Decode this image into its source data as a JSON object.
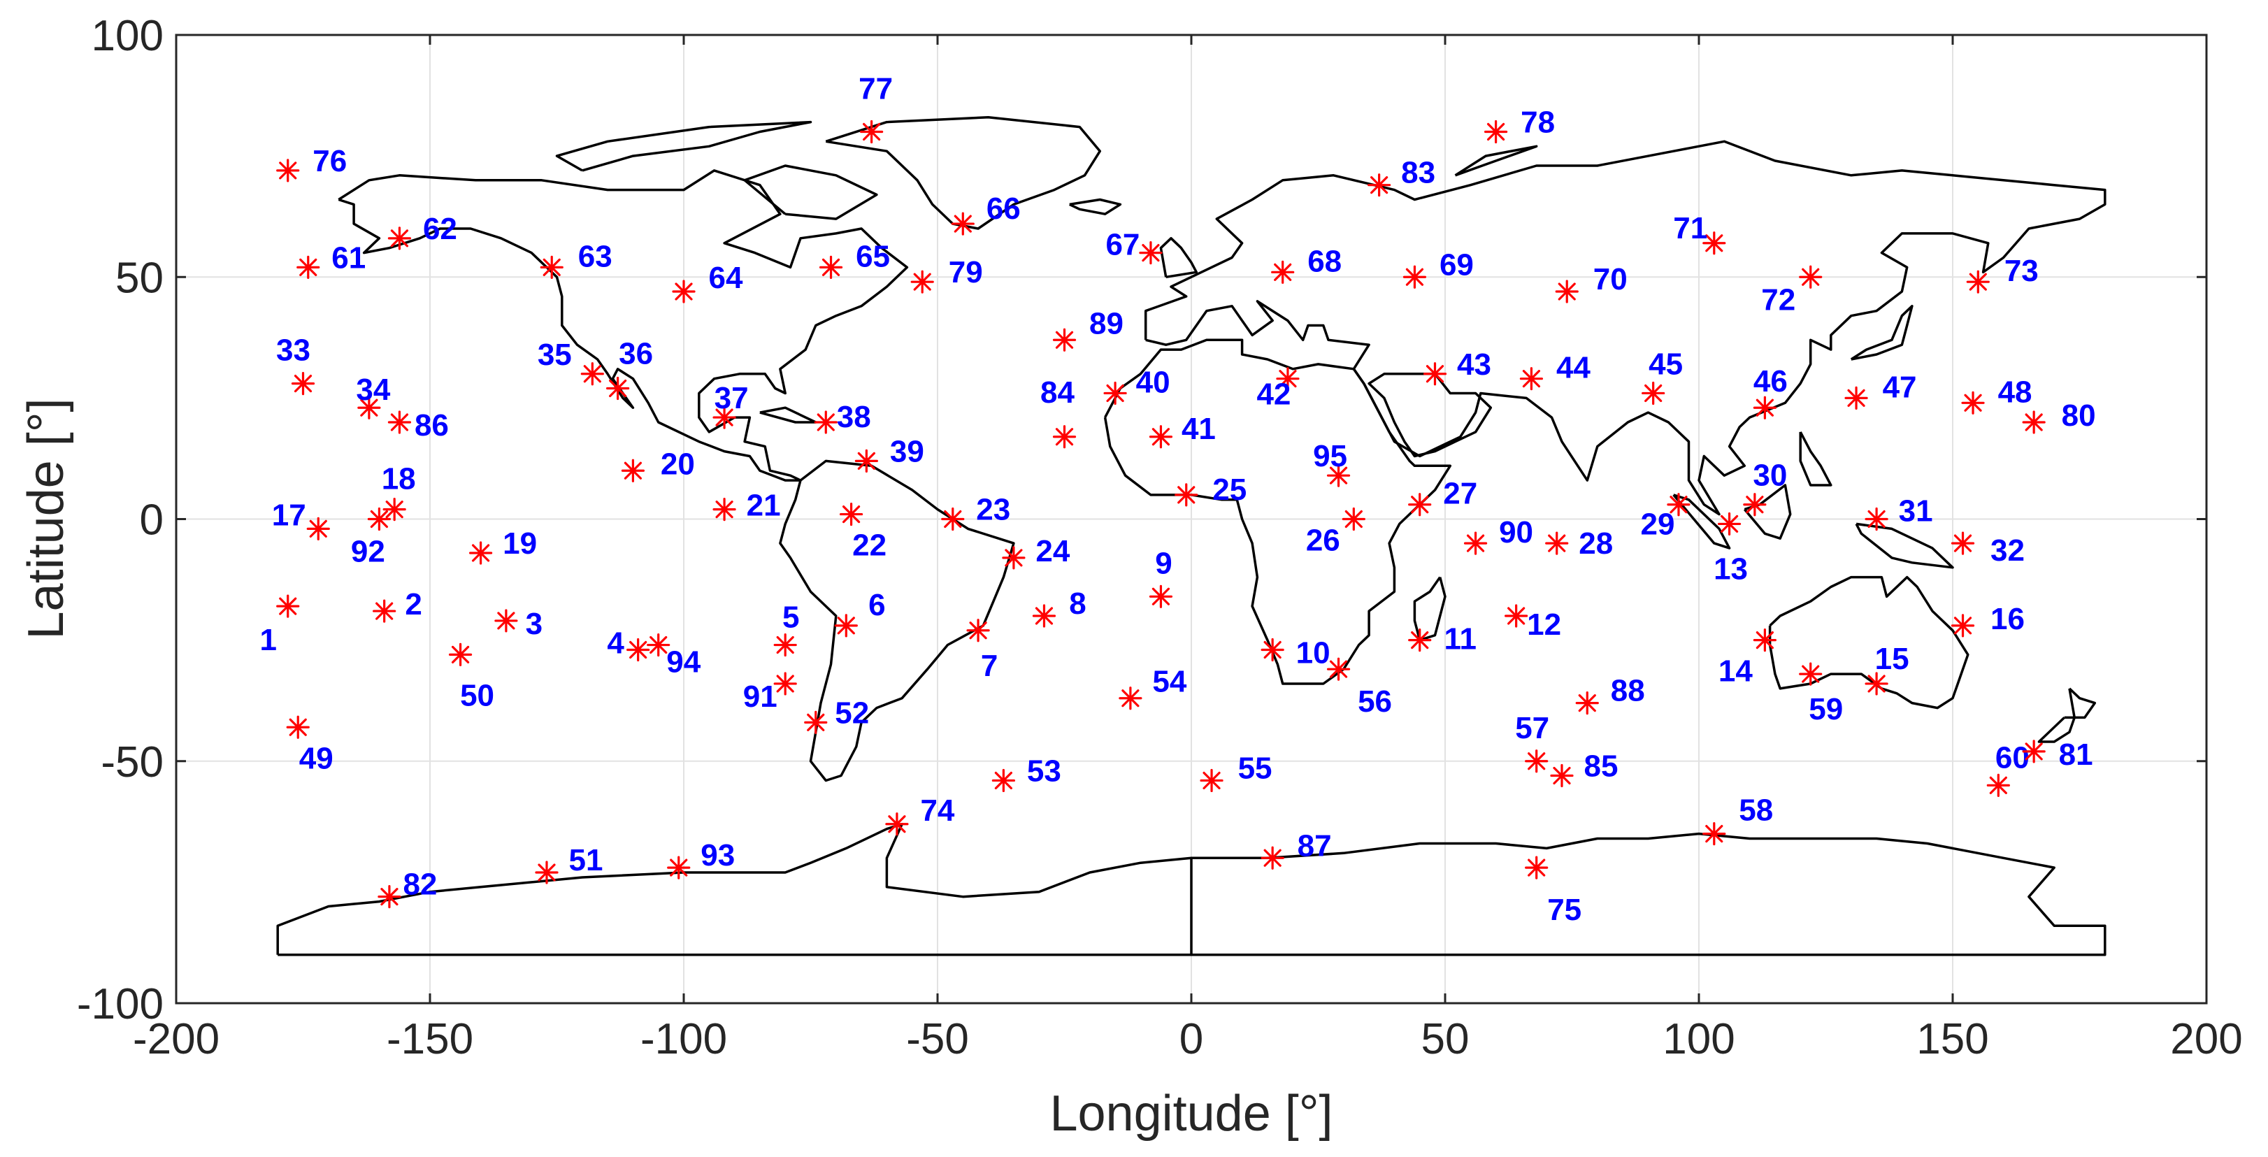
{
  "chart_data": {
    "type": "scatter",
    "xlabel": "Longitude [°]",
    "ylabel": "Latitude [°]",
    "xlim": [
      -200,
      200
    ],
    "ylim": [
      -100,
      100
    ],
    "xticks": [
      "-200",
      "-150",
      "-100",
      "-50",
      "0",
      "50",
      "100",
      "150",
      "200"
    ],
    "yticks": [
      "-100",
      "-50",
      "0",
      "50",
      "100"
    ],
    "grid": true,
    "background": "world coastline map",
    "marker": "asterisk",
    "colors": {
      "marker": "#ff0000",
      "label": "#0000ff",
      "coastline": "#000000",
      "grid": "#e2e2e2"
    },
    "points": [
      {
        "id": "1",
        "lon": -178,
        "lat": -18
      },
      {
        "id": "2",
        "lon": -159,
        "lat": -19
      },
      {
        "id": "3",
        "lon": -135,
        "lat": -21
      },
      {
        "id": "4",
        "lon": -109,
        "lat": -27
      },
      {
        "id": "5",
        "lon": -80,
        "lat": -26
      },
      {
        "id": "6",
        "lon": -68,
        "lat": -22
      },
      {
        "id": "7",
        "lon": -42,
        "lat": -23
      },
      {
        "id": "8",
        "lon": -29,
        "lat": -20
      },
      {
        "id": "9",
        "lon": -6,
        "lat": -16
      },
      {
        "id": "10",
        "lon": 16,
        "lat": -27
      },
      {
        "id": "11",
        "lon": 45,
        "lat": -25
      },
      {
        "id": "12",
        "lon": 64,
        "lat": -20
      },
      {
        "id": "13",
        "lon": 106,
        "lat": -1
      },
      {
        "id": "14",
        "lon": 113,
        "lat": -25
      },
      {
        "id": "15",
        "lon": 135,
        "lat": -34
      },
      {
        "id": "16",
        "lon": 152,
        "lat": -22
      },
      {
        "id": "17",
        "lon": -172,
        "lat": -2
      },
      {
        "id": "18",
        "lon": -157,
        "lat": 2
      },
      {
        "id": "19",
        "lon": -140,
        "lat": -7
      },
      {
        "id": "20",
        "lon": -110,
        "lat": 10
      },
      {
        "id": "21",
        "lon": -92,
        "lat": 2
      },
      {
        "id": "22",
        "lon": -67,
        "lat": 1
      },
      {
        "id": "23",
        "lon": -47,
        "lat": 0
      },
      {
        "id": "24",
        "lon": -35,
        "lat": -8
      },
      {
        "id": "25",
        "lon": -1,
        "lat": 5
      },
      {
        "id": "26",
        "lon": 32,
        "lat": 0
      },
      {
        "id": "27",
        "lon": 45,
        "lat": 3
      },
      {
        "id": "28",
        "lon": 72,
        "lat": -5
      },
      {
        "id": "29",
        "lon": 96,
        "lat": 3
      },
      {
        "id": "30",
        "lon": 111,
        "lat": 3
      },
      {
        "id": "31",
        "lon": 135,
        "lat": 0
      },
      {
        "id": "32",
        "lon": 152,
        "lat": -5
      },
      {
        "id": "33",
        "lon": -175,
        "lat": 28
      },
      {
        "id": "34",
        "lon": -162,
        "lat": 23
      },
      {
        "id": "35",
        "lon": -118,
        "lat": 30
      },
      {
        "id": "36",
        "lon": -113,
        "lat": 27
      },
      {
        "id": "37",
        "lon": -92,
        "lat": 21
      },
      {
        "id": "38",
        "lon": -72,
        "lat": 20
      },
      {
        "id": "39",
        "lon": -64,
        "lat": 12
      },
      {
        "id": "40",
        "lon": -15,
        "lat": 26
      },
      {
        "id": "41",
        "lon": -6,
        "lat": 17
      },
      {
        "id": "42",
        "lon": 19,
        "lat": 29
      },
      {
        "id": "43",
        "lon": 48,
        "lat": 30
      },
      {
        "id": "44",
        "lon": 67,
        "lat": 29
      },
      {
        "id": "45",
        "lon": 91,
        "lat": 26
      },
      {
        "id": "46",
        "lon": 113,
        "lat": 23
      },
      {
        "id": "47",
        "lon": 131,
        "lat": 25
      },
      {
        "id": "48",
        "lon": 154,
        "lat": 24
      },
      {
        "id": "49",
        "lon": -176,
        "lat": -43
      },
      {
        "id": "50",
        "lon": -144,
        "lat": -28
      },
      {
        "id": "51",
        "lon": -127,
        "lat": -73
      },
      {
        "id": "52",
        "lon": -74,
        "lat": -42
      },
      {
        "id": "53",
        "lon": -37,
        "lat": -54
      },
      {
        "id": "54",
        "lon": -12,
        "lat": -37
      },
      {
        "id": "55",
        "lon": 4,
        "lat": -54
      },
      {
        "id": "56",
        "lon": 29,
        "lat": -31
      },
      {
        "id": "57",
        "lon": 68,
        "lat": -50
      },
      {
        "id": "58",
        "lon": 103,
        "lat": -65
      },
      {
        "id": "59",
        "lon": 122,
        "lat": -32
      },
      {
        "id": "60",
        "lon": 159,
        "lat": -55
      },
      {
        "id": "61",
        "lon": -174,
        "lat": 52
      },
      {
        "id": "62",
        "lon": -156,
        "lat": 58
      },
      {
        "id": "63",
        "lon": -126,
        "lat": 52
      },
      {
        "id": "64",
        "lon": -100,
        "lat": 47
      },
      {
        "id": "65",
        "lon": -71,
        "lat": 52
      },
      {
        "id": "66",
        "lon": -45,
        "lat": 61
      },
      {
        "id": "67",
        "lon": -8,
        "lat": 55
      },
      {
        "id": "68",
        "lon": 18,
        "lat": 51
      },
      {
        "id": "69",
        "lon": 44,
        "lat": 50
      },
      {
        "id": "70",
        "lon": 74,
        "lat": 47
      },
      {
        "id": "71",
        "lon": 103,
        "lat": 57
      },
      {
        "id": "72",
        "lon": 122,
        "lat": 50
      },
      {
        "id": "73",
        "lon": 155,
        "lat": 49
      },
      {
        "id": "74",
        "lon": -58,
        "lat": -63
      },
      {
        "id": "75",
        "lon": 68,
        "lat": -72
      },
      {
        "id": "76",
        "lon": -178,
        "lat": 72
      },
      {
        "id": "77",
        "lon": -63,
        "lat": 80
      },
      {
        "id": "78",
        "lon": 60,
        "lat": 80
      },
      {
        "id": "79",
        "lon": -53,
        "lat": 49
      },
      {
        "id": "80",
        "lon": 166,
        "lat": 20
      },
      {
        "id": "81",
        "lon": 166,
        "lat": -48
      },
      {
        "id": "82",
        "lon": -158,
        "lat": -78
      },
      {
        "id": "83",
        "lon": 37,
        "lat": 69
      },
      {
        "id": "84",
        "lon": -25,
        "lat": 17
      },
      {
        "id": "85",
        "lon": 73,
        "lat": -53
      },
      {
        "id": "86",
        "lon": -156,
        "lat": 20
      },
      {
        "id": "87",
        "lon": 16,
        "lat": -70
      },
      {
        "id": "88",
        "lon": 78,
        "lat": -38
      },
      {
        "id": "89",
        "lon": -25,
        "lat": 37
      },
      {
        "id": "90",
        "lon": 56,
        "lat": -5
      },
      {
        "id": "91",
        "lon": -80,
        "lat": -34
      },
      {
        "id": "92",
        "lon": -160,
        "lat": 0
      },
      {
        "id": "93",
        "lon": -101,
        "lat": -72
      },
      {
        "id": "94",
        "lon": -105,
        "lat": -26
      },
      {
        "id": "95",
        "lon": 29,
        "lat": 9
      }
    ]
  }
}
